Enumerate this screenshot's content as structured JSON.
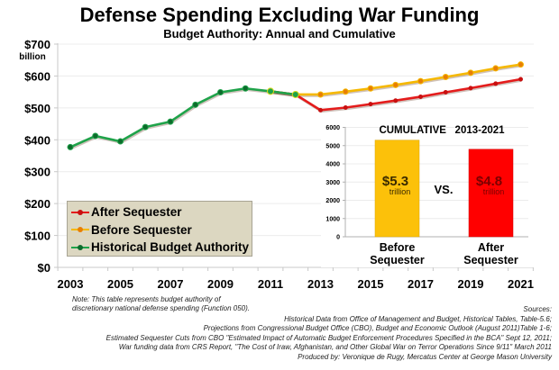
{
  "chart_data": [
    {
      "type": "line",
      "title": "Defense Spending Excluding War Funding",
      "subtitle": "Budget Authority: Annual and Cumulative",
      "xlabel": "",
      "ylabel": "billion",
      "yunit_label": "billion",
      "ylim": [
        0,
        700
      ],
      "yticks": [
        0,
        100,
        200,
        300,
        400,
        500,
        600,
        700
      ],
      "ytick_labels": [
        "$0",
        "$100",
        "$200",
        "$300",
        "$400",
        "$500",
        "$600",
        "$700"
      ],
      "xlim": [
        2003,
        2021
      ],
      "xticks": [
        2003,
        2005,
        2007,
        2009,
        2011,
        2013,
        2015,
        2017,
        2019,
        2021
      ],
      "xtick_labels": [
        "2003",
        "2005",
        "2007",
        "2009",
        "2011",
        "2013",
        "2015",
        "2017",
        "2019",
        "2021"
      ],
      "grid": true,
      "legend_position": "bottom-left",
      "series": [
        {
          "name": "After Sequester",
          "color": "#e41c1c",
          "x": [
            2011,
            2012,
            2013,
            2014,
            2015,
            2016,
            2017,
            2018,
            2019,
            2020,
            2021
          ],
          "values": [
            552,
            542,
            493,
            501,
            512,
            523,
            535,
            549,
            562,
            576,
            590
          ]
        },
        {
          "name": "Before Sequester",
          "color": "#f5b800",
          "marker_color": "#e87e04",
          "x": [
            2011,
            2012,
            2013,
            2014,
            2015,
            2016,
            2017,
            2018,
            2019,
            2020,
            2021
          ],
          "values": [
            552,
            542,
            542,
            551,
            561,
            572,
            584,
            597,
            610,
            624,
            636
          ]
        },
        {
          "name": "Historical Budget Authority",
          "color": "#1fa34a",
          "marker_color": "#0d6b2c",
          "x": [
            2003,
            2004,
            2005,
            2006,
            2007,
            2008,
            2009,
            2010,
            2011,
            2012
          ],
          "values": [
            377,
            412,
            395,
            440,
            457,
            510,
            549,
            561,
            552,
            542
          ]
        }
      ]
    },
    {
      "type": "bar",
      "title": "CUMULATIVE   2013-2021",
      "categories": [
        "Before Sequester",
        "After Sequester"
      ],
      "category_lines": [
        [
          "Before",
          "Sequester"
        ],
        [
          "After",
          "Sequester"
        ]
      ],
      "values": [
        5300,
        4800
      ],
      "colors": [
        "#fcc10a",
        "#ff0000"
      ],
      "data_labels": [
        {
          "amount": "$5.3",
          "unit": "trillion",
          "color": "#3a2a00"
        },
        {
          "amount": "$4.8",
          "unit": "trillion",
          "color": "#7a0000"
        }
      ],
      "between_label": "VS.",
      "ylim": [
        0,
        6000
      ],
      "yticks": [
        0,
        1000,
        2000,
        3000,
        4000,
        5000,
        6000
      ],
      "ytick_labels": [
        "0",
        "1000",
        "2000",
        "3000",
        "4000",
        "5000",
        "6000"
      ],
      "grid": true
    }
  ],
  "header": {
    "title": "Defense Spending Excluding War Funding",
    "subtitle": "Budget Authority: Annual and Cumulative"
  },
  "legend": {
    "items": [
      {
        "label": "After Sequester",
        "color": "#e41c1c",
        "marker": "#c81010"
      },
      {
        "label": "Before Sequester",
        "color": "#f5b800",
        "marker": "#e87e04"
      },
      {
        "label": "Historical Budget Authority",
        "color": "#1fa34a",
        "marker": "#0d6b2c"
      }
    ]
  },
  "footnotes": {
    "note_lines": [
      "Note: This table represents budget authority of",
      "discretionary  national defense spending (Function 050)."
    ],
    "sources_lines": [
      "Sources:",
      "Historical Data from Office of Management and Budget, Historical Tables, Table-5.6;",
      "Projections from Congressional Budget Office (CBO), Budget and Economic Outlook (August 2011)Table 1-6;",
      "Estimated Sequester Cuts from CBO \"Estimated Impact of Automatic Budget Enforcement Procedures Specified in the BCA\" Sept 12, 2011;",
      "War funding data from CRS Report, \"The Cost of Iraw, Afghanistan, and Other Global War on Terror Operations Since 9/11\" March 2011",
      "Produced by: Veronique de Rugy, Mercatus Center at George Mason University"
    ]
  }
}
